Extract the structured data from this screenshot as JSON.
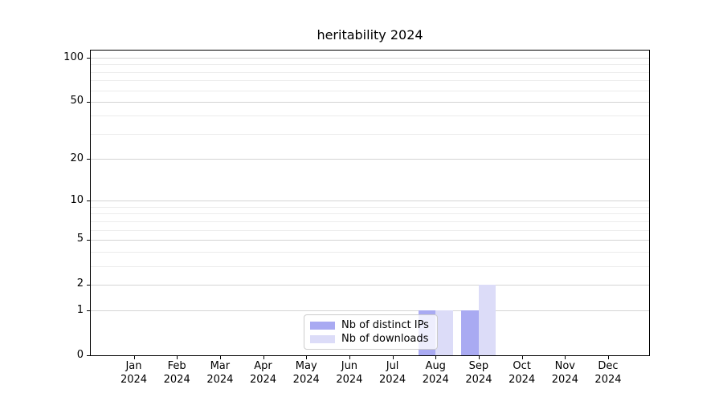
{
  "chart_data": {
    "type": "bar",
    "title": "heritability 2024",
    "categories": [
      "Jan 2024",
      "Feb 2024",
      "Mar 2024",
      "Apr 2024",
      "May 2024",
      "Jun 2024",
      "Jul 2024",
      "Aug 2024",
      "Sep 2024",
      "Oct 2024",
      "Nov 2024",
      "Dec 2024"
    ],
    "series": [
      {
        "name": "Nb of distinct IPs",
        "color": "#a9aaf2",
        "values": [
          0,
          0,
          0,
          0,
          0,
          0,
          0,
          1,
          1,
          0,
          0,
          0
        ]
      },
      {
        "name": "Nb of downloads",
        "color": "#dcdcf8",
        "values": [
          0,
          0,
          0,
          0,
          0,
          0,
          0,
          1,
          2,
          0,
          0,
          0
        ]
      }
    ],
    "xlabel": "",
    "ylabel": "",
    "yscale": "log(1+y)",
    "ylim": [
      0,
      112
    ],
    "y_major_ticks": [
      0,
      1,
      2,
      5,
      10,
      20,
      50,
      100
    ],
    "y_minor_gridlines": [
      3,
      4,
      6,
      7,
      8,
      9,
      30,
      40,
      60,
      70,
      80,
      90
    ],
    "grid": "horizontal",
    "legend_position": "inside-lower-center"
  },
  "colors": {
    "axis": "#000000",
    "major_gridline": "#d4d4d4",
    "minor_gridline": "#ececec",
    "legend_border": "#cccccc",
    "text": "#000000"
  }
}
